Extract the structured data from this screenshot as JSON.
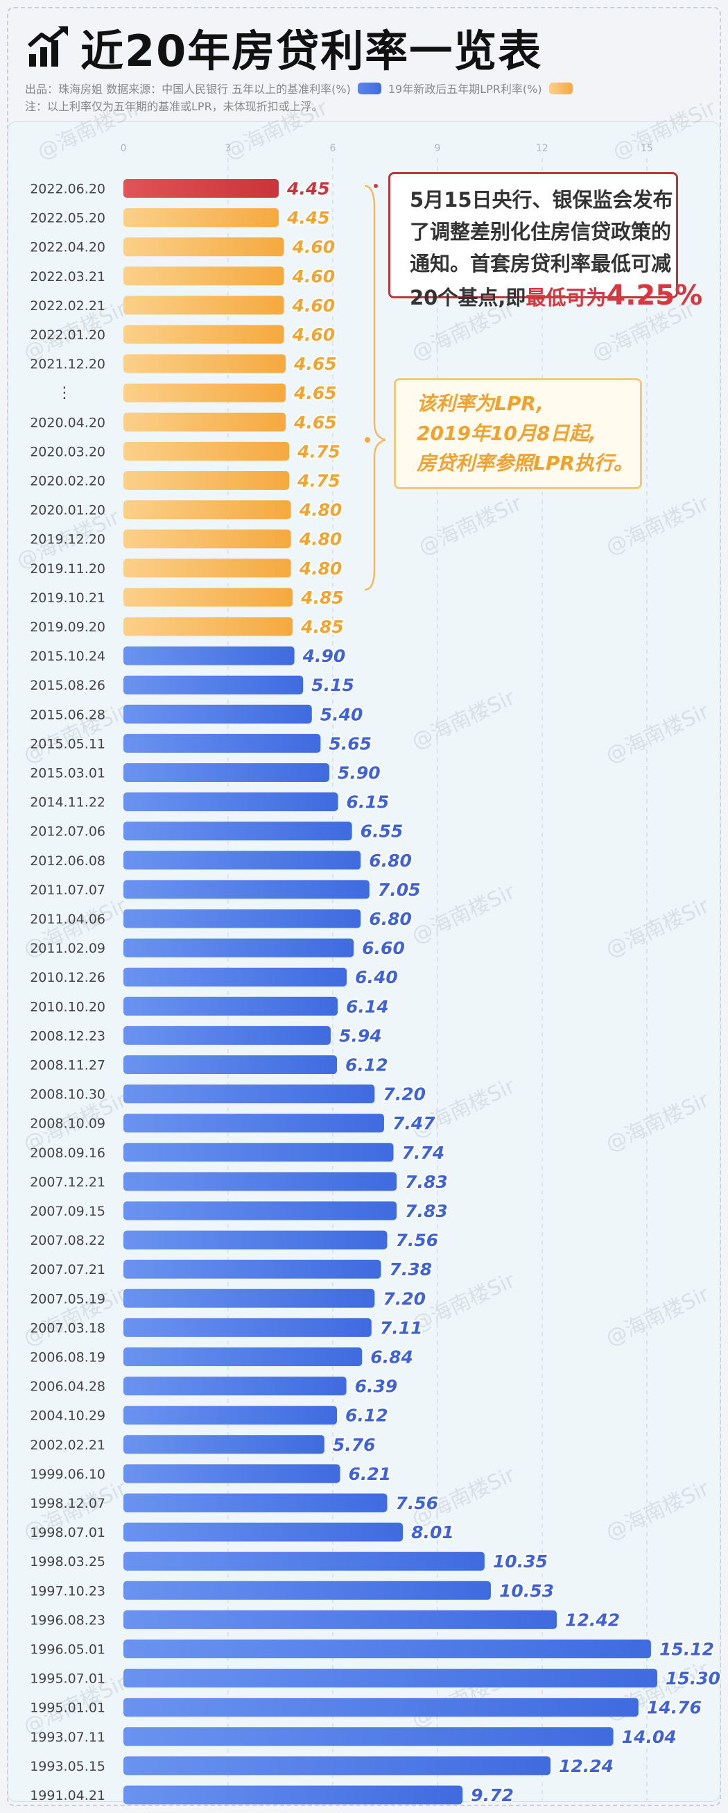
{
  "header": {
    "title": "近20年房贷利率一览表",
    "source_line": "出品：珠海房姐  数据来源：中国人民银行  五年以上的基准利率(%)",
    "lpr_legend": "19年新政后五年期LPR利率(%)",
    "note": "注：以上利率仅为五年期的基准或LPR，未体现折扣或上浮。"
  },
  "watermark": "@海南楼Sir",
  "colors": {
    "benchmark": "#4f78e3",
    "lpr": "#f6b356",
    "latest": "#cf3d3f",
    "accent_red": "#d8373f"
  },
  "annotations": {
    "policy": {
      "lines": [
        "5月15日央行、银保监会发布",
        "了调整差别化住房信贷政策的",
        "通知。首套房贷利率最低可减"
      ],
      "last_prefix": "20个基点,即",
      "last_red": "最低可为",
      "last_big": "4.25%"
    },
    "lpr": {
      "lines": [
        "该利率为LPR,",
        "2019年10月8日起,",
        "房贷利率参照LPR执行。"
      ]
    }
  },
  "chart_data": {
    "type": "bar",
    "orientation": "horizontal",
    "x_ticks": [
      0,
      3,
      6,
      9,
      12,
      15
    ],
    "xlim": [
      0,
      15.3
    ],
    "grid": true,
    "legend": "top",
    "categories": [
      "2022.06.20",
      "2022.05.20",
      "2022.04.20",
      "2022.03.21",
      "2022.02.21",
      "2022.01.20",
      "2021.12.20",
      "⋮",
      "2020.04.20",
      "2020.03.20",
      "2020.02.20",
      "2020.01.20",
      "2019.12.20",
      "2019.11.20",
      "2019.10.21",
      "2019.09.20",
      "2015.10.24",
      "2015.08.26",
      "2015.06.28",
      "2015.05.11",
      "2015.03.01",
      "2014.11.22",
      "2012.07.06",
      "2012.06.08",
      "2011.07.07",
      "2011.04.06",
      "2011.02.09",
      "2010.12.26",
      "2010.10.20",
      "2008.12.23",
      "2008.11.27",
      "2008.10.30",
      "2008.10.09",
      "2008.09.16",
      "2007.12.21",
      "2007.09.15",
      "2007.08.22",
      "2007.07.21",
      "2007.05.19",
      "2007.03.18",
      "2006.08.19",
      "2006.04.28",
      "2004.10.29",
      "2002.02.21",
      "1999.06.10",
      "1998.12.07",
      "1998.07.01",
      "1998.03.25",
      "1997.10.23",
      "1996.08.23",
      "1996.05.01",
      "1995.07.01",
      "1995.01.01",
      "1993.07.11",
      "1993.05.15",
      "1991.04.21"
    ],
    "values": [
      4.45,
      4.45,
      4.6,
      4.6,
      4.6,
      4.6,
      4.65,
      4.65,
      4.65,
      4.75,
      4.75,
      4.8,
      4.8,
      4.8,
      4.85,
      4.85,
      4.9,
      5.15,
      5.4,
      5.65,
      5.9,
      6.15,
      6.55,
      6.8,
      7.05,
      6.8,
      6.6,
      6.4,
      6.14,
      5.94,
      6.12,
      7.2,
      7.47,
      7.74,
      7.83,
      7.83,
      7.56,
      7.38,
      7.2,
      7.11,
      6.84,
      6.39,
      6.12,
      5.76,
      6.21,
      7.56,
      8.01,
      10.35,
      10.53,
      12.42,
      15.12,
      15.3,
      14.76,
      14.04,
      12.24,
      9.72
    ],
    "value_labels": [
      "4.45",
      "4.45",
      "4.60",
      "4.60",
      "4.60",
      "4.60",
      "4.65",
      "4.65",
      "4.65",
      "4.75",
      "4.75",
      "4.80",
      "4.80",
      "4.80",
      "4.85",
      "4.85",
      "4.90",
      "5.15",
      "5.40",
      "5.65",
      "5.90",
      "6.15",
      "6.55",
      "6.80",
      "7.05",
      "6.80",
      "6.60",
      "6.40",
      "6.14",
      "5.94",
      "6.12",
      "7.20",
      "7.47",
      "7.74",
      "7.83",
      "7.83",
      "7.56",
      "7.38",
      "7.20",
      "7.11",
      "6.84",
      "6.39",
      "6.12",
      "5.76",
      "6.21",
      "7.56",
      "8.01",
      "10.35",
      "10.53",
      "12.42",
      "15.12",
      "15.30",
      "14.76",
      "14.04",
      "12.24",
      "9.72"
    ],
    "series_type": [
      "latest",
      "lpr",
      "lpr",
      "lpr",
      "lpr",
      "lpr",
      "lpr",
      "lpr",
      "lpr",
      "lpr",
      "lpr",
      "lpr",
      "lpr",
      "lpr",
      "lpr",
      "lpr",
      "benchmark",
      "benchmark",
      "benchmark",
      "benchmark",
      "benchmark",
      "benchmark",
      "benchmark",
      "benchmark",
      "benchmark",
      "benchmark",
      "benchmark",
      "benchmark",
      "benchmark",
      "benchmark",
      "benchmark",
      "benchmark",
      "benchmark",
      "benchmark",
      "benchmark",
      "benchmark",
      "benchmark",
      "benchmark",
      "benchmark",
      "benchmark",
      "benchmark",
      "benchmark",
      "benchmark",
      "benchmark",
      "benchmark",
      "benchmark",
      "benchmark",
      "benchmark",
      "benchmark",
      "benchmark",
      "benchmark",
      "benchmark",
      "benchmark",
      "benchmark",
      "benchmark",
      "benchmark"
    ]
  }
}
